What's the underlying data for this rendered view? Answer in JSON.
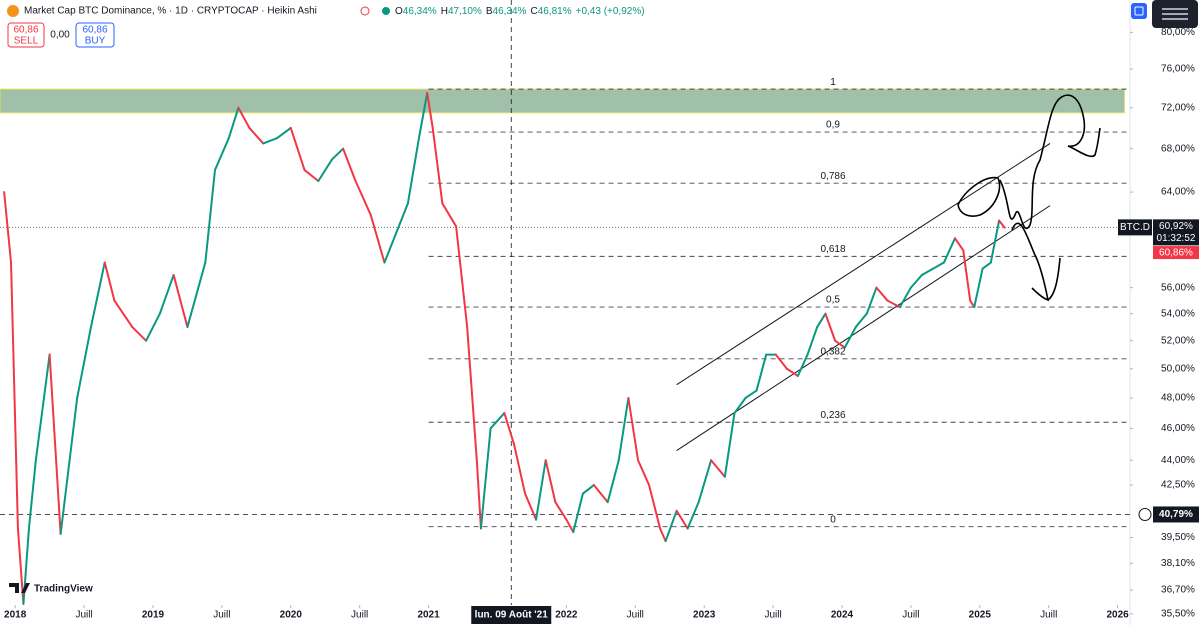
{
  "header": {
    "title": "Market Cap BTC Dominance, % · 1D · CRYPTOCAP · Heikin Ashi",
    "ohlc": [
      {
        "label": "O",
        "value": "46,34%"
      },
      {
        "label": "H",
        "value": "47,10%"
      },
      {
        "label": "B",
        "value": "46,34%"
      },
      {
        "label": "C",
        "value": "46,81%"
      }
    ],
    "change": "+0,43 (+0,92%)"
  },
  "order_panel": {
    "sell_price": "60,86",
    "sell": "SELL",
    "spread": "0,00",
    "buy_price": "60,86",
    "buy": "BUY"
  },
  "branding": "TradingView",
  "chart_data": {
    "type": "line",
    "log_scale": true,
    "up_color": "#089981",
    "down_color": "#f23645",
    "xlim": [
      2017.89,
      2026.09
    ],
    "ylim": [
      35.1,
      83.7
    ],
    "xticks": [
      {
        "value": 2018,
        "label": "2018"
      },
      {
        "value": 2018.5,
        "label": "Juill"
      },
      {
        "value": 2019,
        "label": "2019"
      },
      {
        "value": 2019.5,
        "label": "Juill"
      },
      {
        "value": 2020,
        "label": "2020"
      },
      {
        "value": 2020.5,
        "label": "Juill"
      },
      {
        "value": 2021,
        "label": "2021"
      },
      {
        "value": 2022,
        "label": "2022"
      },
      {
        "value": 2022.5,
        "label": "Juill"
      },
      {
        "value": 2023,
        "label": "2023"
      },
      {
        "value": 2023.5,
        "label": "Juill"
      },
      {
        "value": 2024,
        "label": "2024"
      },
      {
        "value": 2024.5,
        "label": "Juill"
      },
      {
        "value": 2025,
        "label": "2025"
      },
      {
        "value": 2025.5,
        "label": "Juill"
      },
      {
        "value": 2026,
        "label": "2026"
      }
    ],
    "yticks": [
      {
        "value": 80,
        "label": "80,00%"
      },
      {
        "value": 76,
        "label": "76,00%"
      },
      {
        "value": 72,
        "label": "72,00%"
      },
      {
        "value": 68,
        "label": "68,00%"
      },
      {
        "value": 64,
        "label": "64,00%"
      },
      {
        "value": 56,
        "label": "56,00%"
      },
      {
        "value": 54,
        "label": "54,00%"
      },
      {
        "value": 52,
        "label": "52,00%"
      },
      {
        "value": 50,
        "label": "50,00%"
      },
      {
        "value": 48,
        "label": "48,00%"
      },
      {
        "value": 46,
        "label": "46,00%"
      },
      {
        "value": 44,
        "label": "44,00%"
      },
      {
        "value": 42.5,
        "label": "42,50%"
      },
      {
        "value": 39.5,
        "label": "39,50%"
      },
      {
        "value": 38.1,
        "label": "38,10%"
      },
      {
        "value": 36.7,
        "label": "36,70%"
      },
      {
        "value": 35.5,
        "label": "35,50%"
      }
    ],
    "x": [
      2017.92,
      2017.97,
      2018.02,
      2018.06,
      2018.1,
      2018.15,
      2018.25,
      2018.33,
      2018.45,
      2018.55,
      2018.65,
      2018.72,
      2018.85,
      2018.95,
      2019.05,
      2019.15,
      2019.25,
      2019.38,
      2019.45,
      2019.55,
      2019.62,
      2019.7,
      2019.8,
      2019.9,
      2020.0,
      2020.1,
      2020.2,
      2020.3,
      2020.38,
      2020.47,
      2020.58,
      2020.68,
      2020.75,
      2020.85,
      2020.93,
      2020.99,
      2021.03,
      2021.1,
      2021.2,
      2021.28,
      2021.35,
      2021.38,
      2021.45,
      2021.55,
      2021.62,
      2021.7,
      2021.78,
      2021.85,
      2021.92,
      2022.0,
      2022.05,
      2022.12,
      2022.2,
      2022.3,
      2022.38,
      2022.45,
      2022.52,
      2022.6,
      2022.68,
      2022.72,
      2022.8,
      2022.88,
      2022.96,
      2023.05,
      2023.15,
      2023.22,
      2023.3,
      2023.38,
      2023.45,
      2023.52,
      2023.6,
      2023.68,
      2023.75,
      2023.82,
      2023.88,
      2023.95,
      2024.02,
      2024.1,
      2024.18,
      2024.25,
      2024.33,
      2024.42,
      2024.5,
      2024.58,
      2024.66,
      2024.74,
      2024.82,
      2024.88,
      2024.93,
      2024.96,
      2025.02,
      2025.08,
      2025.14,
      2025.18
    ],
    "series": [
      {
        "name": "BTC.D",
        "values": [
          64,
          58,
          40,
          36,
          40,
          44,
          51,
          39.7,
          48,
          53,
          58,
          55,
          53,
          52,
          54,
          57,
          53,
          58,
          66,
          69,
          72,
          70,
          68.5,
          69,
          70,
          66,
          65,
          67,
          68,
          65,
          62,
          58,
          60,
          63,
          69,
          73.5,
          70,
          63,
          61,
          53,
          44,
          40,
          46,
          47,
          45,
          42,
          40.5,
          44,
          41.5,
          40.5,
          39.8,
          42,
          42.5,
          41.5,
          44,
          48,
          44,
          42.5,
          40,
          39.3,
          41,
          40,
          41.5,
          44,
          43,
          47,
          48,
          48.5,
          51,
          51,
          50,
          49.5,
          51,
          53,
          54,
          52,
          51.5,
          53,
          54,
          56,
          55,
          54.5,
          56,
          57,
          57.5,
          58,
          60,
          59,
          55,
          54.5,
          57.5,
          58,
          61.5,
          60.9
        ]
      }
    ],
    "zone": {
      "color": "#8fb59a",
      "from": [
        2017.89,
        71.5
      ],
      "to": [
        2026.05,
        73.9
      ]
    },
    "fib_start": 2021.0,
    "fib_levels": [
      {
        "label": "1",
        "value": 73.9
      },
      {
        "label": "0,9",
        "value": 69.6
      },
      {
        "label": "0,786",
        "value": 64.8
      },
      {
        "label": "0,618",
        "value": 58.5
      },
      {
        "label": "0,5",
        "value": 54.5
      },
      {
        "label": "0,382",
        "value": 50.7
      },
      {
        "label": "0,236",
        "value": 46.4
      },
      {
        "label": "0",
        "value": 40.1
      }
    ],
    "channel": [
      {
        "x": [
          2022.8,
          2025.51
        ],
        "values": [
          48.9,
          68.5
        ]
      },
      {
        "x": [
          2022.8,
          2025.51
        ],
        "values": [
          44.6,
          62.8
        ]
      }
    ],
    "symbol": "BTC.D",
    "last_price": {
      "value": 60.92,
      "label": "60,92%"
    },
    "countdown": "01:32:52",
    "bid_price": {
      "value": 60.86,
      "label": "60,86%"
    },
    "crosshair": {
      "x": {
        "value": 2021.6,
        "label": "lun. 09 Août '21"
      },
      "y": {
        "value": 40.79,
        "label": "40,79%"
      }
    }
  }
}
